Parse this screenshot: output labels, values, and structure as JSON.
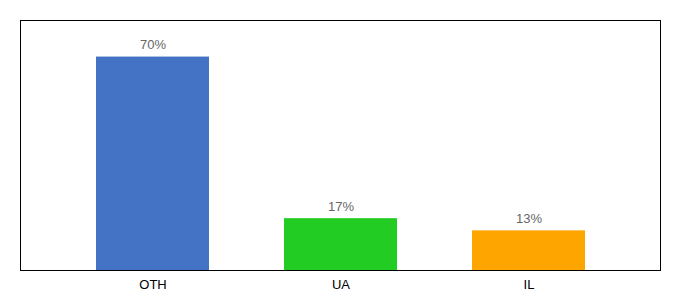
{
  "chart_data": {
    "type": "bar",
    "categories": [
      "OTH",
      "UA",
      "IL"
    ],
    "values": [
      70,
      17,
      13
    ],
    "value_labels": [
      "70%",
      "17%",
      "13%"
    ],
    "colors": [
      "#4472C4",
      "#22CC22",
      "#FFA500"
    ],
    "ylim": [
      0,
      82
    ],
    "yticks": [],
    "data_labels": true,
    "tick_labels": "x",
    "grid": false
  }
}
